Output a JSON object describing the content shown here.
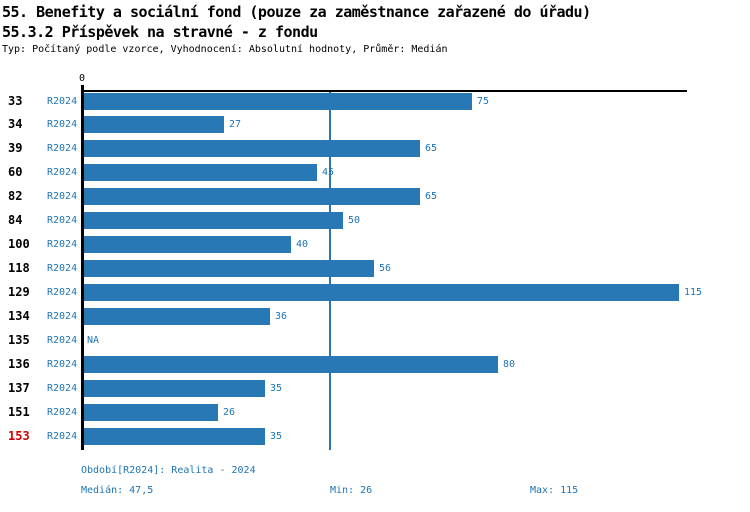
{
  "title": "55. Benefity a sociální fond (pouze za zaměstnance zařazené do úřadu)",
  "subtitle": "55.3.2 Příspěvek na stravné - z fondu",
  "meta": "Typ: Počítaný podle vzorce, Vyhodnocení: Absolutní hodnoty, Průměr: Medián",
  "axis": {
    "zero_label": "0"
  },
  "chart_data": {
    "type": "bar",
    "orientation": "horizontal",
    "categories": [
      "33",
      "34",
      "39",
      "60",
      "82",
      "84",
      "100",
      "118",
      "129",
      "134",
      "135",
      "136",
      "137",
      "151",
      "153"
    ],
    "series_label": "R2024",
    "values": [
      75,
      27,
      65,
      45,
      65,
      50,
      40,
      56,
      115,
      36,
      null,
      80,
      35,
      26,
      35
    ],
    "value_labels": [
      "75",
      "27",
      "65",
      "45",
      "65",
      "50",
      "40",
      "56",
      "115",
      "36",
      "NA",
      "80",
      "35",
      "26",
      "35"
    ],
    "na_label": "NA",
    "highlighted_category": "153",
    "median_line_value": 47.5,
    "xlim": [
      0,
      116.6
    ],
    "grid": "median-line-only",
    "legend_position": "none"
  },
  "footer": {
    "period": "Období[R2024]: Realita - 2024",
    "median": "Medián: 47,5",
    "min": "Min: 26",
    "max": "Max: 115"
  },
  "colors": {
    "bar": "#2878b5",
    "blue_text": "#1e74b5",
    "highlight_red": "#d40000",
    "axis_black": "#000000"
  }
}
